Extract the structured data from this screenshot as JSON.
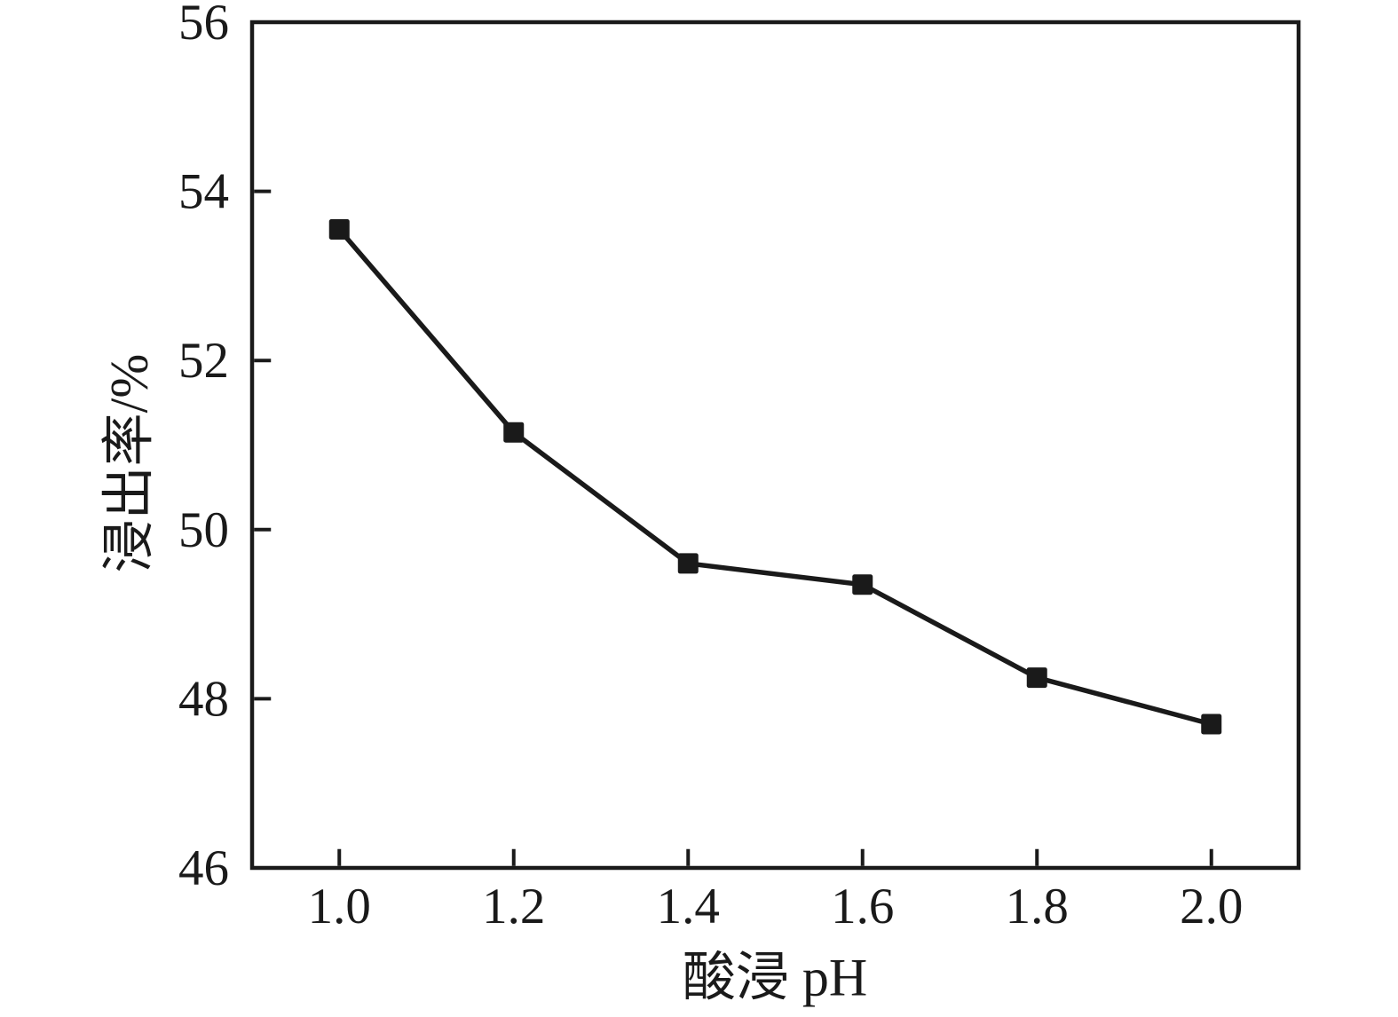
{
  "figure": {
    "xlabel": "酸浸 pH",
    "ylabel": "浸出率/%"
  },
  "chart_data": {
    "type": "line",
    "title": "",
    "xlabel": "酸浸 pH",
    "ylabel": "浸出率/%",
    "x": [
      1.0,
      1.2,
      1.4,
      1.6,
      1.8,
      2.0
    ],
    "series": [
      {
        "name": "浸出率",
        "values": [
          53.55,
          51.15,
          49.6,
          49.35,
          48.25,
          47.7
        ]
      }
    ],
    "xlim": [
      0.9,
      2.1
    ],
    "ylim": [
      46,
      56
    ],
    "xticks": [
      "1.0",
      "1.2",
      "1.4",
      "1.6",
      "1.8",
      "2.0"
    ],
    "yticks": [
      "46",
      "48",
      "50",
      "52",
      "54",
      "56"
    ],
    "grid": false,
    "legend_position": "none",
    "marker": "square",
    "marker_size": 23,
    "line_color": "#1a1a1a",
    "marker_color": "#1a1a1a",
    "axis_color": "#1a1a1a",
    "text_color": "#1a1a1a",
    "background": "#ffffff"
  }
}
